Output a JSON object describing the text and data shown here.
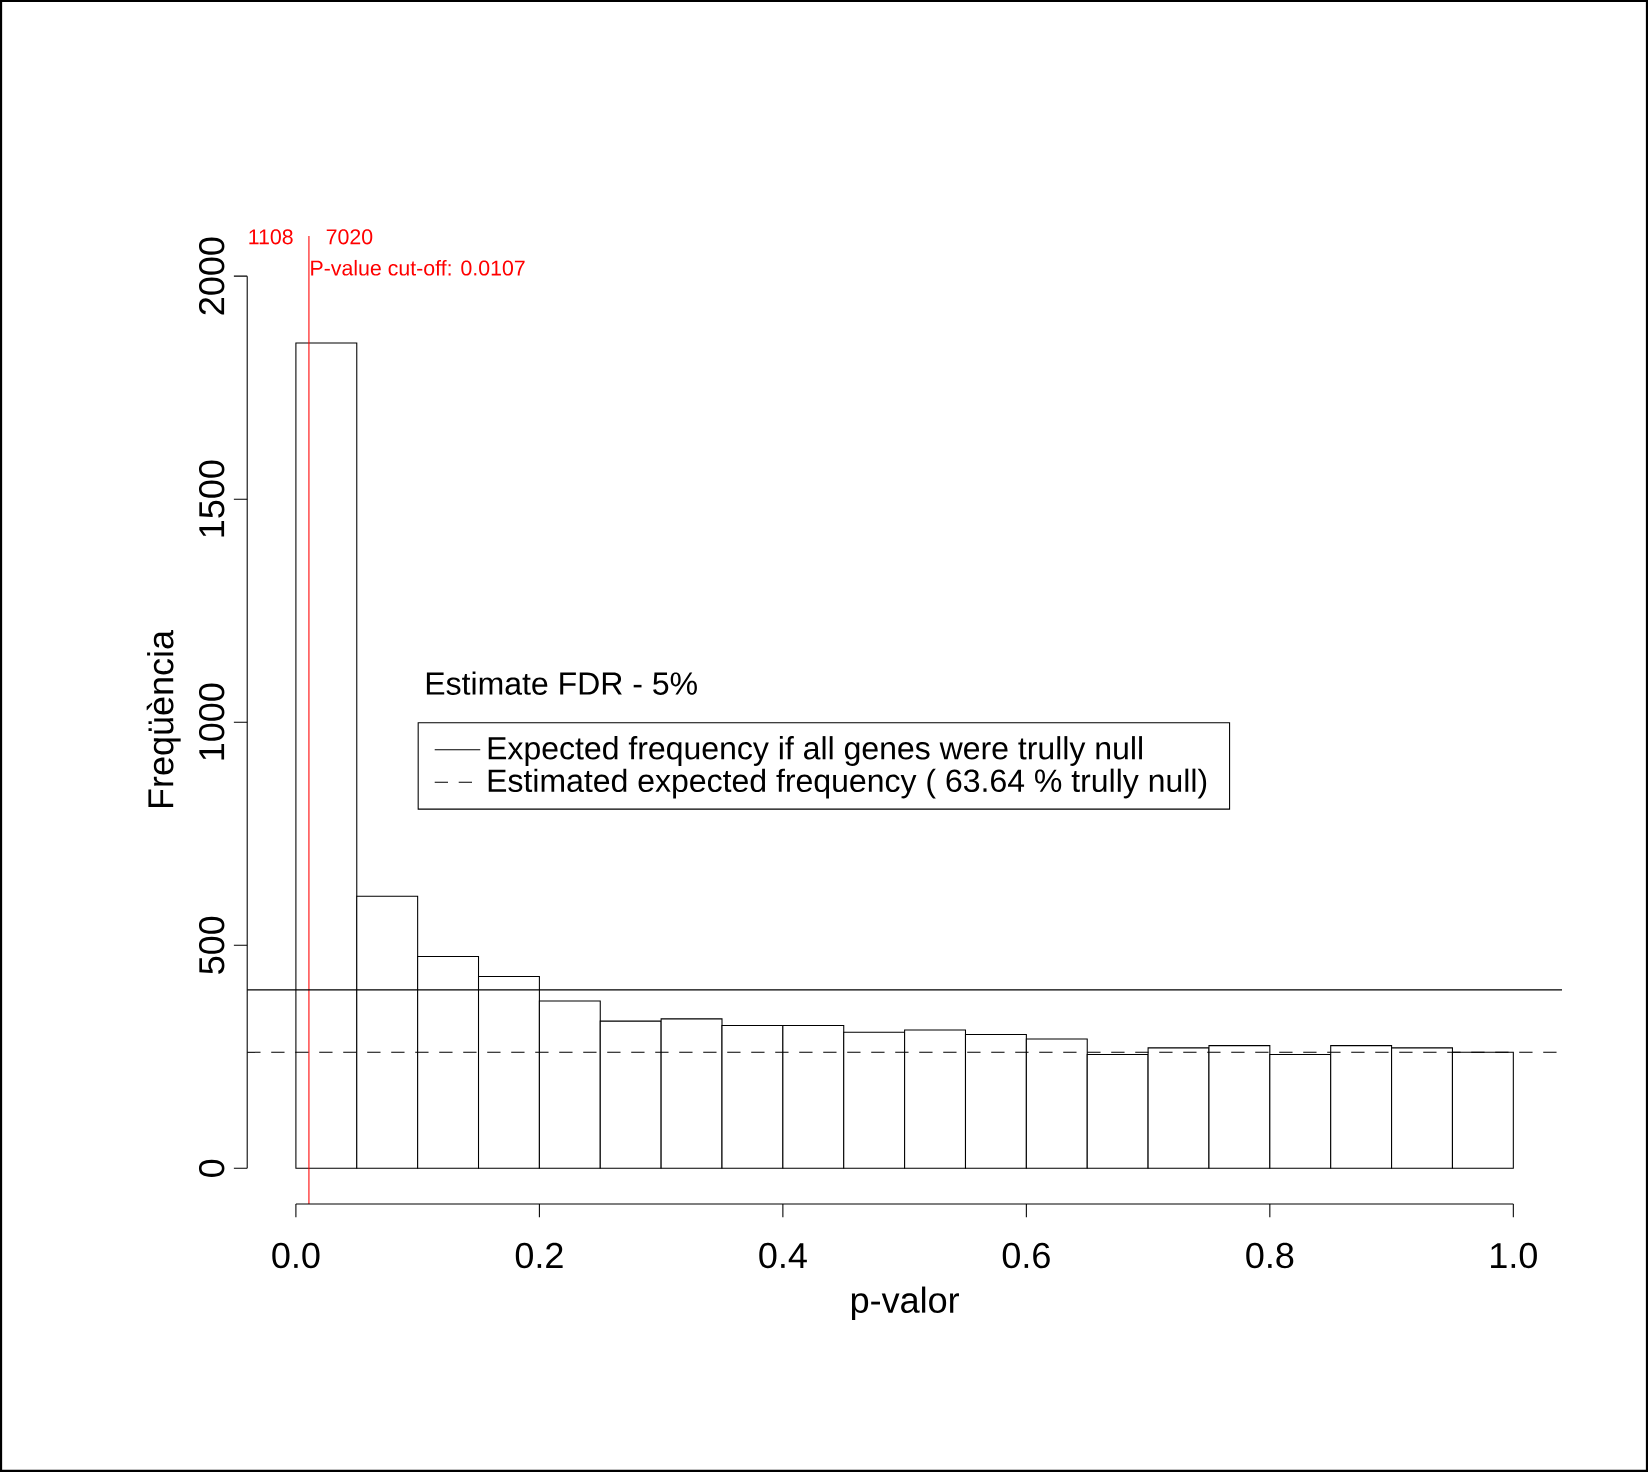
{
  "chart_data": {
    "type": "histogram",
    "xlabel": "p-valor",
    "ylabel": "Freqüència",
    "legend_title": "Estimate FDR - 5%",
    "legend": "center",
    "xlim": [
      -0.04,
      1.04
    ],
    "ylim": [
      -80,
      2090
    ],
    "xticks": [
      {
        "value": 0,
        "label": "0.0"
      },
      {
        "value": 0.2,
        "label": "0.2"
      },
      {
        "value": 0.4,
        "label": "0.4"
      },
      {
        "value": 0.6,
        "label": "0.6"
      },
      {
        "value": 0.8,
        "label": "0.8"
      },
      {
        "value": 1,
        "label": "1.0"
      }
    ],
    "yticks": [
      0,
      500,
      1000,
      1500,
      2000
    ],
    "color": "#000000",
    "bins": [
      0,
      0.05,
      0.1,
      0.15,
      0.2,
      0.25,
      0.3,
      0.35,
      0.4,
      0.45,
      0.5,
      0.55,
      0.6,
      0.65,
      0.7,
      0.75,
      0.8,
      0.85,
      0.9,
      0.95,
      1.0
    ],
    "values": [
      1850,
      610,
      475,
      430,
      375,
      330,
      335,
      320,
      320,
      305,
      310,
      300,
      290,
      255,
      270,
      275,
      255,
      275,
      270,
      260
    ],
    "ref_lines": [
      {
        "axis": "x",
        "value": 0.0107,
        "label": "P-value cut-off: 0.0107",
        "color": "#ff0000"
      },
      {
        "axis": "y",
        "value": 400,
        "label": "Expected frequency if all genes were trully null",
        "color": "#000000",
        "line_style": "solid"
      },
      {
        "axis": "y",
        "value": 260,
        "label": "Estimated expected frequency ( 63.64 % trully null)",
        "color": "#000000",
        "line_style": "dashed"
      }
    ],
    "annotations": [
      "1108",
      "7020"
    ]
  }
}
